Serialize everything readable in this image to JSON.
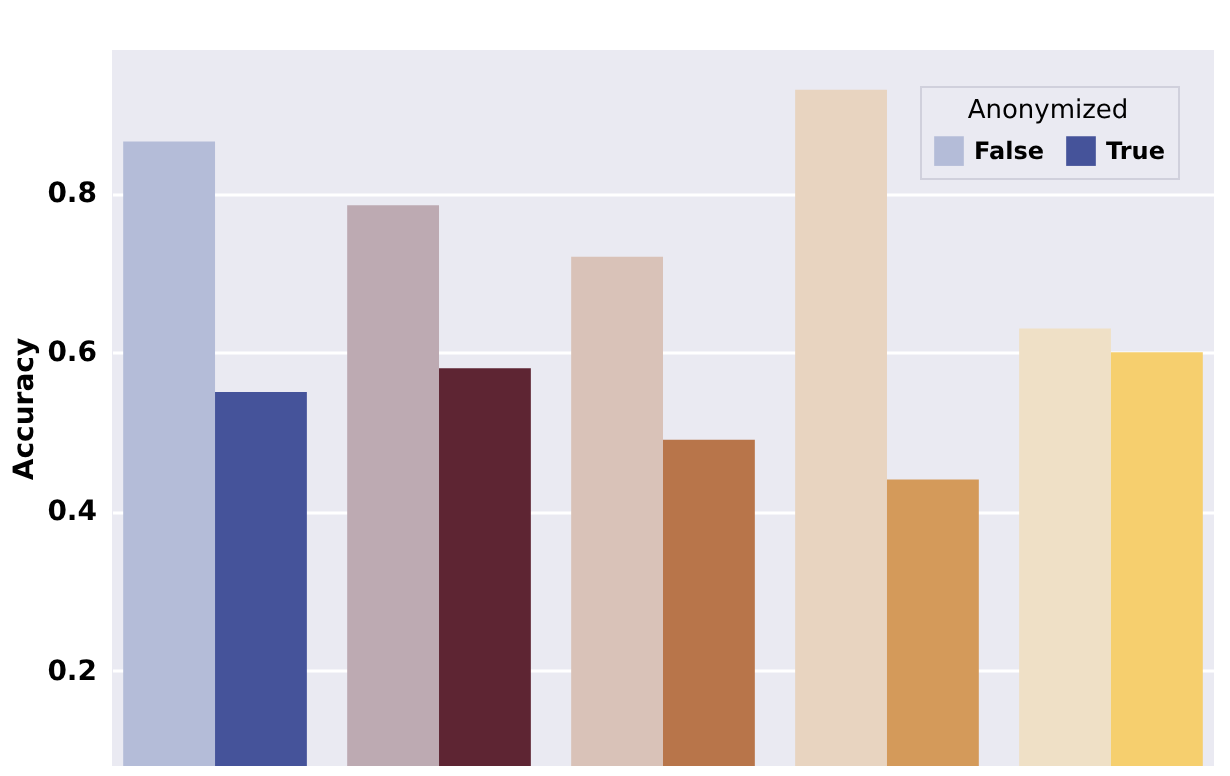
{
  "chart_data": {
    "type": "bar",
    "ylabel": "Accuracy",
    "legend_title": "Anonymized",
    "legend": "top right",
    "grid": "y",
    "tick_labels": "y",
    "categories": [
      null,
      null,
      null,
      null,
      null
    ],
    "series": [
      {
        "name": "False",
        "color": "#b4bcd8",
        "colors": [
          "#b4bcd8",
          "#bdaab2",
          "#d9c2b8",
          "#e8d4c0",
          "#efe0c6"
        ],
        "values": [
          0.865,
          0.785,
          0.72,
          0.93,
          0.63
        ]
      },
      {
        "name": "True",
        "color": "#45539a",
        "colors": [
          "#45539a",
          "#5e2533",
          "#b8754a",
          "#d49a5a",
          "#f6cf6e"
        ],
        "values": [
          0.55,
          0.58,
          0.49,
          0.44,
          0.6
        ]
      }
    ],
    "ylim": [
      0.08,
      0.98
    ],
    "yticks": [
      0.2,
      0.4,
      0.6,
      0.8
    ]
  }
}
